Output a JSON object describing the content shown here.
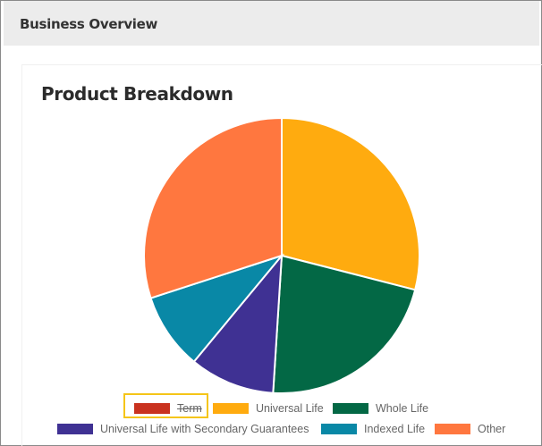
{
  "header": {
    "title": "Business Overview"
  },
  "card": {
    "title": "Product Breakdown"
  },
  "chart_data": {
    "type": "pie",
    "title": "Product Breakdown",
    "categories": [
      "Term",
      "Universal Life",
      "Whole Life",
      "Universal Life with Secondary Guarantees",
      "Indexed Life",
      "Other"
    ],
    "values": [
      0,
      29,
      22,
      10,
      9,
      30
    ],
    "colors": [
      "#c9321f",
      "#ffab0f",
      "#036845",
      "#3f3193",
      "#0988a6",
      "#ff773f"
    ],
    "hidden": [
      "Term"
    ],
    "legend_position": "bottom",
    "start_angle": "top, clockwise"
  },
  "legend": {
    "items": [
      {
        "label": "Term",
        "color": "#c9321f",
        "hidden": true
      },
      {
        "label": "Universal Life",
        "color": "#ffab0f"
      },
      {
        "label": "Whole Life",
        "color": "#036845"
      },
      {
        "label": "Universal Life with Secondary Guarantees",
        "color": "#3f3193"
      },
      {
        "label": "Indexed Life",
        "color": "#0988a6"
      },
      {
        "label": "Other",
        "color": "#ff773f"
      }
    ]
  }
}
